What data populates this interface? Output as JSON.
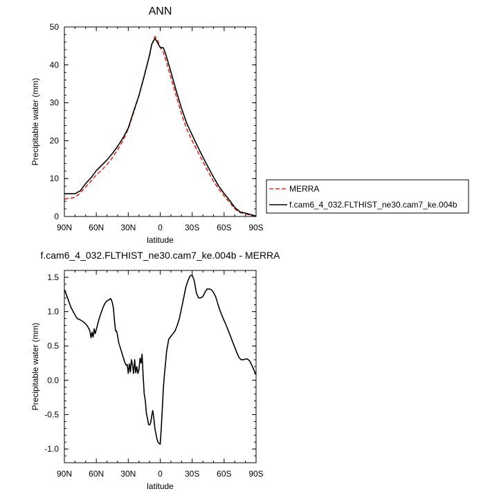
{
  "chart_data": [
    {
      "type": "line",
      "title": "ANN",
      "xlabel": "latitude",
      "ylabel": "Precipitable water (mm)",
      "xlim": [
        90,
        -90
      ],
      "ylim": [
        0,
        50
      ],
      "xtick_labels": [
        "90N",
        "60N",
        "30N",
        "0",
        "30S",
        "60S",
        "90S"
      ],
      "xticks": [
        90,
        60,
        30,
        0,
        -30,
        -60,
        -90
      ],
      "ytick_labels": [
        "0",
        "10",
        "20",
        "30",
        "40",
        "50"
      ],
      "yticks": [
        0,
        10,
        20,
        30,
        40,
        50
      ],
      "legend_position": "right",
      "series": [
        {
          "name": "MERRA",
          "color": "#e8281e",
          "dash": "dashed",
          "x": [
            90,
            80,
            75,
            70,
            65,
            60,
            55,
            50,
            45,
            40,
            35,
            30,
            25,
            20,
            15,
            10,
            8,
            5,
            3,
            0,
            -3,
            -5,
            -10,
            -15,
            -20,
            -25,
            -30,
            -35,
            -40,
            -45,
            -50,
            -55,
            -60,
            -65,
            -70,
            -75,
            -80,
            -85,
            -90
          ],
          "y": [
            4.6,
            5.0,
            6.3,
            7.8,
            9.3,
            11.0,
            12.2,
            13.7,
            15.5,
            17.6,
            20.0,
            23.1,
            27.4,
            31.8,
            37.0,
            42.5,
            45.3,
            47.5,
            46.9,
            44.6,
            43.3,
            41.5,
            36.7,
            31.8,
            27.0,
            23.0,
            20.0,
            17.2,
            14.5,
            11.8,
            9.3,
            7.3,
            5.4,
            3.8,
            2.0,
            1.0,
            0.7,
            0.3,
            0.2
          ]
        },
        {
          "name": "f.cam6_4_032.FLTHIST_ne30.cam7_ke.004b",
          "color": "#000000",
          "dash": "solid",
          "x": [
            90,
            80,
            75,
            70,
            65,
            60,
            55,
            50,
            45,
            40,
            35,
            30,
            25,
            20,
            15,
            10,
            8,
            5,
            3,
            0,
            -3,
            -5,
            -10,
            -15,
            -20,
            -25,
            -30,
            -35,
            -40,
            -45,
            -50,
            -55,
            -60,
            -65,
            -70,
            -75,
            -80,
            -85,
            -90
          ],
          "y": [
            6.0,
            6.0,
            6.8,
            8.7,
            10.2,
            12.1,
            13.5,
            14.9,
            16.6,
            18.5,
            20.7,
            23.3,
            27.7,
            31.9,
            37.1,
            42.6,
            45.4,
            47.0,
            46.1,
            44.6,
            44.5,
            43.0,
            38.2,
            33.2,
            28.5,
            24.5,
            21.5,
            18.5,
            15.7,
            13.0,
            10.4,
            8.0,
            6.1,
            4.3,
            2.4,
            1.2,
            0.9,
            0.5,
            0.1
          ]
        }
      ]
    },
    {
      "type": "line",
      "title": "f.cam6_4_032.FLTHIST_ne30.cam7_ke.004b - MERRA",
      "xlabel": "latitude",
      "ylabel": "Precipitable water (mm)",
      "xlim": [
        90,
        -90
      ],
      "ylim": [
        -1.2,
        1.6
      ],
      "xtick_labels": [
        "90N",
        "60N",
        "30N",
        "0",
        "30S",
        "60S",
        "90S"
      ],
      "xticks": [
        90,
        60,
        30,
        0,
        -30,
        -60,
        -90
      ],
      "ytick_labels": [
        "-1.0",
        "-0.5",
        "0.0",
        "0.5",
        "1.0",
        "1.5"
      ],
      "yticks": [
        -1.0,
        -0.5,
        0.0,
        0.5,
        1.0,
        1.5
      ],
      "series": [
        {
          "color": "#000000",
          "dash": "solid",
          "x": [
            90,
            87,
            84,
            81,
            78,
            75,
            72,
            70,
            68,
            66,
            65,
            64,
            63,
            62,
            61,
            60,
            58,
            56,
            54,
            52,
            50,
            48,
            47,
            46,
            45,
            44,
            43,
            42,
            41,
            40,
            39,
            38,
            37,
            36,
            35,
            34,
            33,
            32,
            31,
            30,
            29,
            28,
            27,
            26,
            25,
            24,
            23,
            22,
            21,
            20,
            19,
            18,
            17,
            16,
            15,
            14,
            13,
            12,
            11,
            10,
            9,
            8,
            7,
            6,
            5,
            4,
            3,
            2,
            1,
            0,
            -1,
            -2,
            -3,
            -4,
            -5,
            -6,
            -8,
            -10,
            -12,
            -14,
            -16,
            -18,
            -20,
            -22,
            -24,
            -26,
            -28,
            -30,
            -32,
            -34,
            -36,
            -38,
            -40,
            -42,
            -44,
            -46,
            -48,
            -50,
            -52,
            -54,
            -56,
            -58,
            -60,
            -62,
            -64,
            -66,
            -68,
            -70,
            -72,
            -74,
            -76,
            -78,
            -80,
            -82,
            -84,
            -86,
            -88,
            -90
          ],
          "y": [
            1.32,
            1.2,
            1.07,
            0.98,
            0.9,
            0.88,
            0.85,
            0.82,
            0.78,
            0.72,
            0.62,
            0.7,
            0.63,
            0.75,
            0.68,
            0.74,
            0.86,
            0.96,
            1.05,
            1.12,
            1.16,
            1.17,
            1.19,
            1.18,
            1.13,
            1.06,
            0.88,
            0.72,
            0.72,
            0.65,
            0.55,
            0.5,
            0.45,
            0.4,
            0.35,
            0.3,
            0.25,
            0.22,
            0.23,
            0.1,
            0.24,
            0.12,
            0.3,
            0.22,
            0.1,
            0.3,
            0.11,
            0.2,
            0.1,
            0.15,
            0.32,
            0.25,
            0.38,
            0.05,
            -0.2,
            -0.3,
            -0.48,
            -0.55,
            -0.64,
            -0.65,
            -0.62,
            -0.52,
            -0.44,
            -0.55,
            -0.7,
            -0.78,
            -0.86,
            -0.9,
            -0.92,
            -0.93,
            -0.7,
            -0.4,
            -0.1,
            0.1,
            0.25,
            0.42,
            0.6,
            0.64,
            0.68,
            0.72,
            0.8,
            0.9,
            1.05,
            1.2,
            1.35,
            1.45,
            1.52,
            1.53,
            1.45,
            1.27,
            1.2,
            1.2,
            1.22,
            1.28,
            1.33,
            1.33,
            1.32,
            1.28,
            1.22,
            1.12,
            1.02,
            0.94,
            0.87,
            0.8,
            0.72,
            0.64,
            0.56,
            0.48,
            0.4,
            0.33,
            0.3,
            0.3,
            0.31,
            0.31,
            0.28,
            0.22,
            0.15,
            0.08
          ]
        }
      ]
    }
  ]
}
